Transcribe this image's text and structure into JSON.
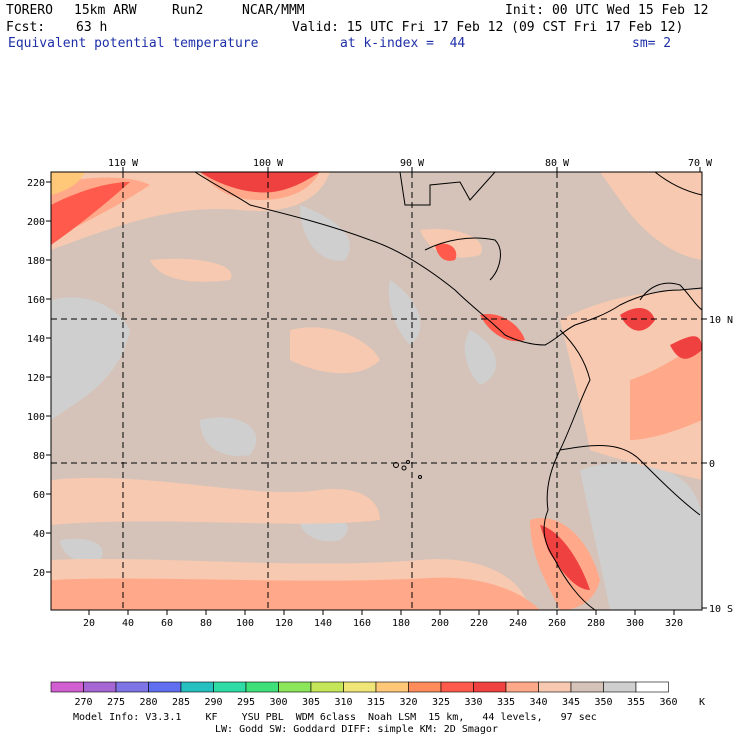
{
  "header": {
    "model": "TORERO",
    "resolution": "15km ARW",
    "run": "Run2",
    "org": "NCAR/MMM",
    "init": "Init: 00 UTC Wed 15 Feb 12",
    "fcst_label": "Fcst:",
    "fcst_value": "63 h",
    "valid": "Valid: 15 UTC Fri 17 Feb 12 (09 CST Fri 17 Feb 12)",
    "field": "Equivalent potential temperature",
    "level": "at k-index =  44",
    "smoothing": "sm= 2"
  },
  "map": {
    "top_axis_labels": [
      "110 W",
      "100 W",
      "90 W",
      "80 W",
      "70 W"
    ],
    "left_axis_labels": [
      "220",
      "200",
      "180",
      "160",
      "140",
      "120",
      "100",
      "80",
      "60",
      "40",
      "20"
    ],
    "bottom_axis_labels": [
      "20",
      "40",
      "60",
      "80",
      "100",
      "120",
      "140",
      "160",
      "180",
      "200",
      "220",
      "240",
      "260",
      "280",
      "300",
      "320"
    ],
    "right_axis_labels": [
      "10 N",
      "0",
      "10 S"
    ],
    "gridlines": "dashed"
  },
  "colorbar": {
    "unit": "K",
    "labels": [
      "270",
      "275",
      "280",
      "285",
      "290",
      "295",
      "300",
      "305",
      "310",
      "315",
      "320",
      "325",
      "330",
      "335",
      "340",
      "345",
      "350",
      "355",
      "360"
    ],
    "colors": [
      "#d25fd2",
      "#a565d2",
      "#7f74e6",
      "#5f6ff0",
      "#26c0c0",
      "#2fdca5",
      "#3fe07a",
      "#8ce65a",
      "#c6e65a",
      "#f0e678",
      "#ffc878",
      "#ff8c5a",
      "#ff5a4b",
      "#f04141",
      "#ffa98a",
      "#f7c9b0",
      "#d5c3b9",
      "#cfcfcf",
      "#ffffff"
    ]
  },
  "footer": {
    "line1": "Model Info: V3.3.1    KF    YSU PBL  WDM 6class  Noah LSM  15 km,   44 levels,   97 sec",
    "line2": "LW: Godd SW: Goddard DIFF: simple KM: 2D Smagor"
  }
}
